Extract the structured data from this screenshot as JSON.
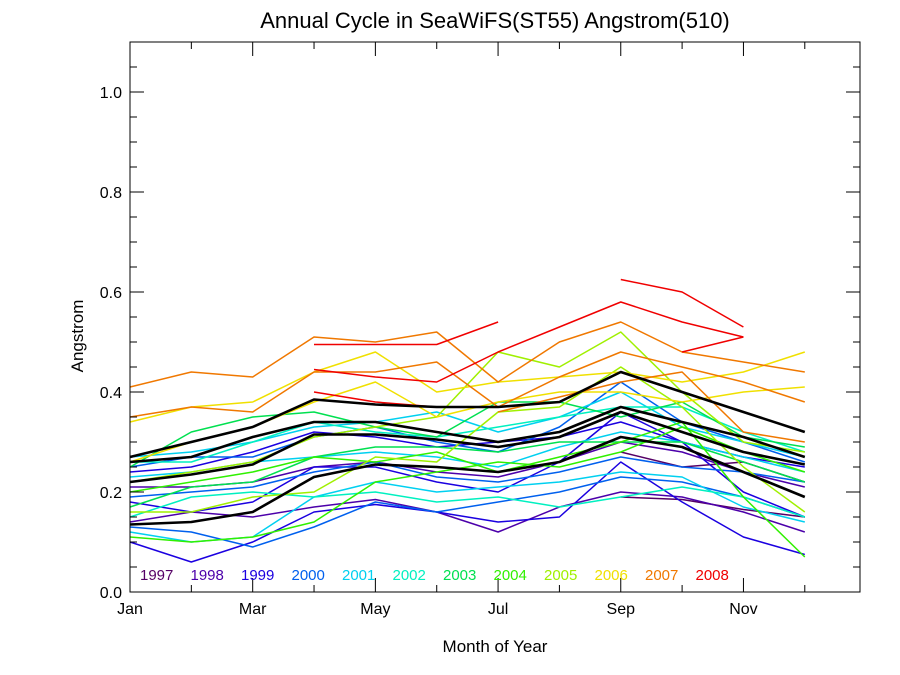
{
  "chart_data": {
    "type": "line",
    "title": "Annual Cycle in SeaWiFS(ST55) Angstrom(510)",
    "xlabel": "Month of Year",
    "ylabel": "Angstrom",
    "xlim": [
      1,
      12.9
    ],
    "ylim": [
      0.0,
      1.1
    ],
    "x_ticks": [
      {
        "value": 1,
        "label": "Jan"
      },
      {
        "value": 3,
        "label": "Mar"
      },
      {
        "value": 5,
        "label": "May"
      },
      {
        "value": 7,
        "label": "Jul"
      },
      {
        "value": 9,
        "label": "Sep"
      },
      {
        "value": 11,
        "label": "Nov"
      }
    ],
    "y_ticks": [
      {
        "value": 0.0,
        "label": "0.0"
      },
      {
        "value": 0.2,
        "label": "0.2"
      },
      {
        "value": 0.4,
        "label": "0.4"
      },
      {
        "value": 0.6,
        "label": "0.6"
      },
      {
        "value": 0.8,
        "label": "0.8"
      },
      {
        "value": 1.0,
        "label": "1.0"
      }
    ],
    "legend_position": "bottom-left inside plot",
    "legend": [
      {
        "name": "1997",
        "color": "#550066"
      },
      {
        "name": "1998",
        "color": "#4c00aa"
      },
      {
        "name": "1999",
        "color": "#1b00e0"
      },
      {
        "name": "2000",
        "color": "#0060ee"
      },
      {
        "name": "2001",
        "color": "#00d0f0"
      },
      {
        "name": "2002",
        "color": "#00f0c0"
      },
      {
        "name": "2003",
        "color": "#00e050"
      },
      {
        "name": "2004",
        "color": "#30f000"
      },
      {
        "name": "2005",
        "color": "#a0f000"
      },
      {
        "name": "2006",
        "color": "#f0e000"
      },
      {
        "name": "2007",
        "color": "#f07800"
      },
      {
        "name": "2008",
        "color": "#f00000"
      }
    ],
    "x": [
      1,
      2,
      3,
      4,
      5,
      6,
      7,
      8,
      9,
      10,
      11,
      12
    ],
    "series": [
      {
        "group": "1997",
        "color": "#550066",
        "values": [
          null,
          null,
          null,
          null,
          null,
          null,
          null,
          null,
          0.28,
          0.25,
          0.26,
          0.22
        ]
      },
      {
        "group": "1997",
        "color": "#550066",
        "values": [
          null,
          null,
          null,
          null,
          null,
          null,
          null,
          null,
          0.19,
          0.185,
          0.165,
          0.15
        ]
      },
      {
        "group": "1998",
        "color": "#4c00aa",
        "values": [
          0.14,
          0.16,
          0.15,
          0.17,
          0.185,
          0.16,
          0.12,
          0.17,
          0.2,
          0.19,
          0.16,
          0.12
        ]
      },
      {
        "group": "1998",
        "color": "#4c00aa",
        "values": [
          0.21,
          0.21,
          0.22,
          0.25,
          0.26,
          0.24,
          0.23,
          0.26,
          0.3,
          0.28,
          0.24,
          0.21
        ]
      },
      {
        "group": "1999",
        "color": "#1b00e0",
        "values": [
          0.1,
          0.06,
          0.1,
          0.16,
          0.175,
          0.16,
          0.14,
          0.15,
          0.26,
          0.18,
          0.11,
          0.075
        ]
      },
      {
        "group": "1999",
        "color": "#1b00e0",
        "values": [
          0.18,
          0.16,
          0.18,
          0.25,
          0.25,
          0.22,
          0.2,
          0.26,
          0.36,
          0.3,
          0.2,
          0.15
        ]
      },
      {
        "group": "1999",
        "color": "#1b00e0",
        "values": [
          0.24,
          0.25,
          0.28,
          0.32,
          0.31,
          0.29,
          0.3,
          0.31,
          0.34,
          0.3,
          0.27,
          0.25
        ]
      },
      {
        "group": "2000",
        "color": "#0060ee",
        "values": [
          0.13,
          0.12,
          0.09,
          0.13,
          0.18,
          0.16,
          0.18,
          0.2,
          0.23,
          0.22,
          0.19,
          0.15
        ]
      },
      {
        "group": "2000",
        "color": "#0060ee",
        "values": [
          0.25,
          0.27,
          0.27,
          0.31,
          0.33,
          0.3,
          0.28,
          0.33,
          0.42,
          0.34,
          0.3,
          0.26
        ]
      },
      {
        "group": "2000",
        "color": "#0060ee",
        "values": [
          0.19,
          0.2,
          0.21,
          0.24,
          0.26,
          0.23,
          0.22,
          0.24,
          0.27,
          0.25,
          0.24,
          0.22
        ]
      },
      {
        "group": "2001",
        "color": "#00d0f0",
        "values": [
          0.12,
          0.1,
          0.11,
          0.19,
          0.22,
          0.2,
          0.21,
          0.22,
          0.24,
          0.23,
          0.17,
          0.14
        ]
      },
      {
        "group": "2001",
        "color": "#00d0f0",
        "values": [
          0.23,
          0.24,
          0.26,
          0.27,
          0.28,
          0.27,
          0.25,
          0.29,
          0.32,
          0.3,
          0.27,
          0.24
        ]
      },
      {
        "group": "2001",
        "color": "#00d0f0",
        "values": [
          0.27,
          0.28,
          0.3,
          0.33,
          0.34,
          0.36,
          0.32,
          0.35,
          0.4,
          0.33,
          0.3,
          0.27
        ]
      },
      {
        "group": "2002",
        "color": "#00f0c0",
        "values": [
          0.15,
          0.19,
          0.2,
          0.19,
          0.2,
          0.18,
          0.19,
          0.17,
          0.19,
          0.21,
          0.19,
          0.15
        ]
      },
      {
        "group": "2002",
        "color": "#00f0c0",
        "values": [
          0.26,
          0.26,
          0.3,
          0.34,
          0.32,
          0.31,
          0.33,
          0.35,
          0.37,
          0.37,
          0.32,
          0.28
        ]
      },
      {
        "group": "2003",
        "color": "#00e050",
        "values": [
          0.17,
          0.21,
          0.22,
          0.27,
          0.29,
          0.29,
          0.28,
          0.3,
          0.3,
          0.3,
          0.26,
          0.22
        ]
      },
      {
        "group": "2003",
        "color": "#00e050",
        "values": [
          0.25,
          0.32,
          0.35,
          0.36,
          0.33,
          0.31,
          0.38,
          0.38,
          0.35,
          0.38,
          0.31,
          0.29
        ]
      },
      {
        "group": "2004",
        "color": "#30f000",
        "values": [
          0.11,
          0.1,
          0.11,
          0.14,
          0.22,
          0.24,
          0.26,
          0.25,
          0.28,
          0.33,
          0.28,
          0.24
        ]
      },
      {
        "group": "2004",
        "color": "#30f000",
        "values": [
          0.2,
          0.22,
          0.24,
          0.27,
          0.26,
          0.28,
          0.24,
          0.27,
          0.3,
          0.34,
          0.19,
          0.07
        ]
      },
      {
        "group": "2005",
        "color": "#a0f000",
        "values": [
          0.16,
          0.16,
          0.19,
          0.2,
          0.27,
          0.26,
          0.36,
          0.37,
          0.45,
          0.37,
          0.25,
          0.16
        ]
      },
      {
        "group": "2005",
        "color": "#a0f000",
        "values": [
          0.22,
          0.24,
          0.26,
          0.31,
          0.33,
          0.35,
          0.48,
          0.45,
          0.52,
          0.4,
          0.3,
          0.28
        ]
      },
      {
        "group": "2006",
        "color": "#f0e000",
        "values": [
          0.34,
          0.37,
          0.38,
          0.44,
          0.48,
          0.4,
          0.42,
          0.43,
          0.44,
          0.42,
          0.44,
          0.48
        ]
      },
      {
        "group": "2006",
        "color": "#f0e000",
        "values": [
          0.26,
          0.3,
          0.33,
          0.38,
          0.42,
          0.35,
          0.38,
          0.4,
          0.4,
          0.38,
          0.4,
          0.41
        ]
      },
      {
        "group": "2007",
        "color": "#f07800",
        "values": [
          0.41,
          0.44,
          0.43,
          0.51,
          0.5,
          0.52,
          0.42,
          0.5,
          0.54,
          0.48,
          0.46,
          0.44
        ]
      },
      {
        "group": "2007",
        "color": "#f07800",
        "values": [
          0.35,
          0.37,
          0.36,
          0.44,
          0.44,
          0.46,
          0.37,
          0.43,
          0.48,
          0.45,
          0.42,
          0.38
        ]
      },
      {
        "group": "2007",
        "color": "#f07800",
        "values": [
          null,
          null,
          null,
          null,
          null,
          null,
          0.36,
          0.39,
          0.42,
          0.44,
          0.32,
          0.3
        ]
      },
      {
        "group": "2008",
        "color": "#f00000",
        "values": [
          null,
          null,
          null,
          0.495,
          0.495,
          0.495,
          0.54,
          null,
          0.625,
          0.6,
          0.53,
          null
        ]
      },
      {
        "group": "2008",
        "color": "#f00000",
        "values": [
          null,
          null,
          null,
          0.445,
          0.43,
          0.42,
          0.48,
          0.53,
          0.58,
          0.54,
          0.51,
          null
        ]
      },
      {
        "group": "2008",
        "color": "#f00000",
        "values": [
          null,
          null,
          null,
          0.4,
          0.38,
          0.37,
          null,
          null,
          null,
          0.48,
          0.51,
          null
        ]
      },
      {
        "group": "mean",
        "color": "#000000",
        "values": [
          0.27,
          0.3,
          0.33,
          0.385,
          0.375,
          0.37,
          0.37,
          0.38,
          0.44,
          0.4,
          0.36,
          0.32
        ]
      },
      {
        "group": "mean",
        "color": "#000000",
        "values": [
          0.26,
          0.27,
          0.31,
          0.34,
          0.34,
          0.32,
          0.3,
          0.32,
          0.37,
          0.34,
          0.31,
          0.27
        ]
      },
      {
        "group": "mean",
        "color": "#000000",
        "values": [
          0.22,
          0.235,
          0.255,
          0.315,
          0.315,
          0.305,
          0.29,
          0.31,
          0.36,
          0.32,
          0.28,
          0.255
        ]
      },
      {
        "group": "mean",
        "color": "#000000",
        "values": [
          0.135,
          0.14,
          0.16,
          0.23,
          0.255,
          0.25,
          0.24,
          0.26,
          0.31,
          0.29,
          0.24,
          0.19
        ]
      }
    ]
  }
}
